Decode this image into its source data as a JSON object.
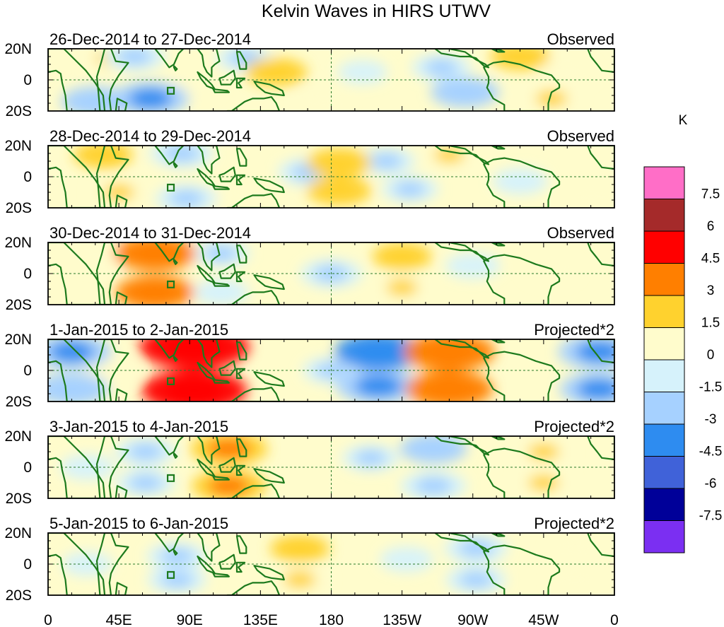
{
  "chart_data": {
    "type": "heatmap",
    "title": "Kelvin Waves in HIRS UTWV",
    "units": "K",
    "panels": [
      {
        "date_range": "26-Dec-2014 to 27-Dec-2014",
        "label": "Observed",
        "features": [
          {
            "lon": 145,
            "lat": 5,
            "value": 2.0
          },
          {
            "lon": 300,
            "lat": 15,
            "value": 1.8
          },
          {
            "lon": 320,
            "lat": -12,
            "value": 1.6
          },
          {
            "lon": 330,
            "lat": 5,
            "value": 1.4
          },
          {
            "lon": 40,
            "lat": 14,
            "value": 1.5
          },
          {
            "lon": 175,
            "lat": -12,
            "value": 1.2
          },
          {
            "lon": 93,
            "lat": -3,
            "value": 1.2
          },
          {
            "lon": 30,
            "lat": -14,
            "value": -2.5
          },
          {
            "lon": 65,
            "lat": -12,
            "value": -3.2
          },
          {
            "lon": 55,
            "lat": 15,
            "value": -2.0
          },
          {
            "lon": 265,
            "lat": -8,
            "value": -2.5
          },
          {
            "lon": 250,
            "lat": 8,
            "value": -1.8
          },
          {
            "lon": 200,
            "lat": 5,
            "value": -1.0
          },
          {
            "lon": 125,
            "lat": 14,
            "value": -1.6
          }
        ]
      },
      {
        "date_range": "28-Dec-2014 to 29-Dec-2014",
        "label": "Observed",
        "features": [
          {
            "lon": 185,
            "lat": 9,
            "value": 2.2
          },
          {
            "lon": 185,
            "lat": -9,
            "value": 2.2
          },
          {
            "lon": 35,
            "lat": 14,
            "value": 1.8
          },
          {
            "lon": 45,
            "lat": -10,
            "value": 1.6
          },
          {
            "lon": 255,
            "lat": 14,
            "value": 1.5
          },
          {
            "lon": 345,
            "lat": -14,
            "value": 1.4
          },
          {
            "lon": 115,
            "lat": -12,
            "value": 1.3
          },
          {
            "lon": 85,
            "lat": 15,
            "value": -2.2
          },
          {
            "lon": 88,
            "lat": -14,
            "value": -2.0
          },
          {
            "lon": 165,
            "lat": 3,
            "value": -1.8
          },
          {
            "lon": 215,
            "lat": 10,
            "value": -1.7
          },
          {
            "lon": 230,
            "lat": -8,
            "value": -1.6
          },
          {
            "lon": 300,
            "lat": -3,
            "value": -1.5
          }
        ]
      },
      {
        "date_range": "30-Dec-2014 to 31-Dec-2014",
        "label": "Observed",
        "features": [
          {
            "lon": 68,
            "lat": 13,
            "value": 3.6
          },
          {
            "lon": 68,
            "lat": -12,
            "value": 3.3
          },
          {
            "lon": 225,
            "lat": 11,
            "value": 1.8
          },
          {
            "lon": 225,
            "lat": -9,
            "value": 1.6
          },
          {
            "lon": 30,
            "lat": 12,
            "value": 1.4
          },
          {
            "lon": 320,
            "lat": 2,
            "value": 1.2
          },
          {
            "lon": 180,
            "lat": 0,
            "value": -2.0
          },
          {
            "lon": 110,
            "lat": 13,
            "value": -1.6
          },
          {
            "lon": 110,
            "lat": -12,
            "value": -1.5
          },
          {
            "lon": 270,
            "lat": 5,
            "value": -1.4
          }
        ]
      },
      {
        "date_range": "1-Jan-2015 to 2-Jan-2015",
        "label": "Projected*2",
        "features": [
          {
            "lon": 93,
            "lat": 15,
            "value": 5.8
          },
          {
            "lon": 93,
            "lat": -13,
            "value": 5.4
          },
          {
            "lon": 255,
            "lat": 12,
            "value": 4.3
          },
          {
            "lon": 255,
            "lat": -12,
            "value": 4.0
          },
          {
            "lon": 210,
            "lat": 12,
            "value": -4.0
          },
          {
            "lon": 210,
            "lat": -10,
            "value": -3.8
          },
          {
            "lon": 350,
            "lat": 12,
            "value": -3.5
          },
          {
            "lon": 350,
            "lat": -12,
            "value": -3.2
          },
          {
            "lon": 15,
            "lat": 12,
            "value": -3.4
          },
          {
            "lon": 15,
            "lat": -12,
            "value": -3.0
          },
          {
            "lon": 180,
            "lat": 0,
            "value": -1.6
          },
          {
            "lon": 40,
            "lat": 0,
            "value": 1.4
          }
        ]
      },
      {
        "date_range": "3-Jan-2015 to 4-Jan-2015",
        "label": "Projected*2",
        "features": [
          {
            "lon": 115,
            "lat": 12,
            "value": 3.2
          },
          {
            "lon": 115,
            "lat": -12,
            "value": 3.0
          },
          {
            "lon": 315,
            "lat": 10,
            "value": 1.6
          },
          {
            "lon": 315,
            "lat": -10,
            "value": 1.5
          },
          {
            "lon": 245,
            "lat": 12,
            "value": -2.4
          },
          {
            "lon": 245,
            "lat": -12,
            "value": -2.3
          },
          {
            "lon": 205,
            "lat": 6,
            "value": -1.6
          },
          {
            "lon": 62,
            "lat": 10,
            "value": -2.0
          },
          {
            "lon": 62,
            "lat": -10,
            "value": -1.8
          },
          {
            "lon": 25,
            "lat": 0,
            "value": -1.4
          }
        ]
      },
      {
        "date_range": "5-Jan-2015 to 6-Jan-2015",
        "label": "Projected*2",
        "features": [
          {
            "lon": 160,
            "lat": 10,
            "value": 1.8
          },
          {
            "lon": 160,
            "lat": -10,
            "value": 1.7
          },
          {
            "lon": 335,
            "lat": 10,
            "value": 1.2
          },
          {
            "lon": 335,
            "lat": -10,
            "value": 1.1
          },
          {
            "lon": 82,
            "lat": 5,
            "value": -1.9
          },
          {
            "lon": 82,
            "lat": -10,
            "value": -1.8
          },
          {
            "lon": 272,
            "lat": 10,
            "value": -2.1
          },
          {
            "lon": 272,
            "lat": -10,
            "value": -1.9
          },
          {
            "lon": 228,
            "lat": 3,
            "value": -1.3
          },
          {
            "lon": 25,
            "lat": 0,
            "value": -1.1
          }
        ]
      }
    ],
    "xlabels": [
      "0",
      "45E",
      "90E",
      "135E",
      "180",
      "135W",
      "90W",
      "45W",
      "0"
    ],
    "xlim": [
      0,
      360
    ],
    "ylabels": [
      "20N",
      "0",
      "20S"
    ],
    "ylim": [
      -20,
      20
    ],
    "colorbar": {
      "levels": [
        "7.5",
        "6",
        "4.5",
        "3",
        "1.5",
        "0",
        "-1.5",
        "-3",
        "-4.5",
        "-6",
        "-7.5"
      ],
      "level_values": [
        7.5,
        6,
        4.5,
        3,
        1.5,
        0,
        -1.5,
        -3,
        -4.5,
        -6,
        -7.5
      ],
      "colors": [
        "#ff6ec7",
        "#a52a2a",
        "#ff0000",
        "#ff7f00",
        "#ffd22e",
        "#fffccc",
        "#d6f2fb",
        "#a6d1ff",
        "#2e8cf0",
        "#4062d9",
        "#000099",
        "#7b2ff2"
      ]
    }
  }
}
